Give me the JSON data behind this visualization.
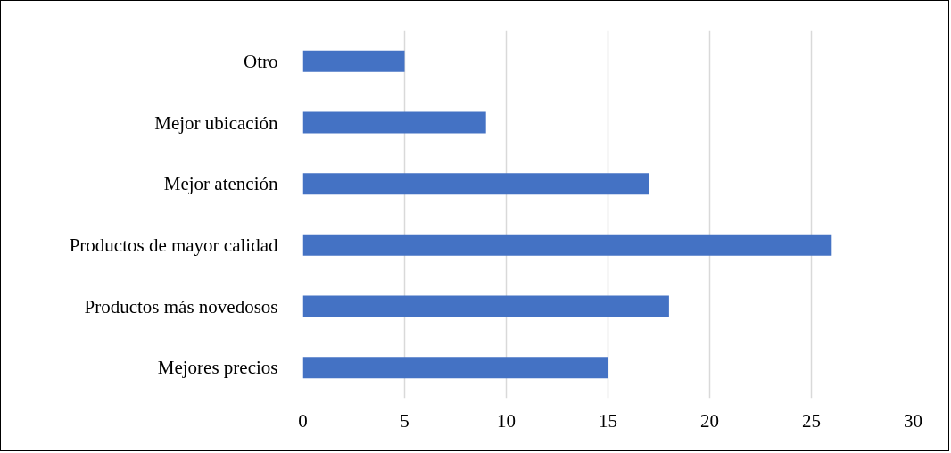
{
  "chart_data": {
    "type": "bar",
    "orientation": "horizontal",
    "categories": [
      "Otro",
      "Mejor ubicación",
      "Mejor atención",
      "Productos de mayor calidad",
      "Productos más novedosos",
      "Mejores precios"
    ],
    "values": [
      5,
      9,
      17,
      26,
      18,
      15
    ],
    "color": "#4472c4",
    "xlim": [
      0,
      30
    ],
    "xticks": [
      0,
      5,
      10,
      15,
      20,
      25,
      30
    ],
    "grid": "x"
  }
}
